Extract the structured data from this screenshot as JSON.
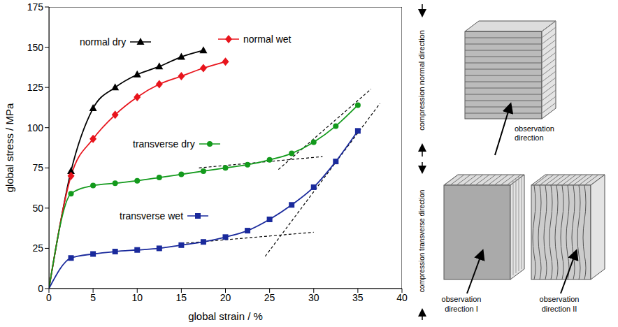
{
  "chart_data": {
    "type": "line",
    "x_label": "global strain / %",
    "y_label": "global stress / MPa",
    "xlim": [
      0,
      40
    ],
    "xticks": [
      0,
      5,
      10,
      15,
      20,
      25,
      30,
      35,
      40
    ],
    "ylim": [
      0,
      175
    ],
    "yticks": [
      0,
      25,
      50,
      75,
      100,
      125,
      150,
      175
    ],
    "series": [
      {
        "name": "normal dry",
        "color": "#000000",
        "marker": "triangle",
        "x": [
          0,
          2.5,
          5,
          7.5,
          10,
          12.5,
          15,
          17.5
        ],
        "values": [
          0,
          73,
          112,
          125,
          133,
          138,
          144,
          148
        ]
      },
      {
        "name": "normal wet",
        "color": "#e8141c",
        "marker": "diamond",
        "x": [
          0,
          2.5,
          5,
          7.5,
          10,
          12.5,
          15,
          17.5,
          20
        ],
        "values": [
          0,
          70,
          93,
          108,
          119,
          127,
          132,
          137,
          141
        ]
      },
      {
        "name": "transverse dry",
        "color": "#139a1c",
        "marker": "circle",
        "x": [
          0,
          2.5,
          5,
          7.5,
          10,
          12.5,
          15,
          17.5,
          20,
          22.5,
          25,
          27.5,
          30,
          32.5,
          35
        ],
        "values": [
          0,
          59,
          64,
          65.5,
          67,
          69,
          71,
          73,
          75,
          77,
          80,
          84,
          91,
          101,
          114
        ]
      },
      {
        "name": "transverse wet",
        "color": "#1a2a9c",
        "marker": "square",
        "x": [
          0,
          2.5,
          5,
          7.5,
          10,
          12.5,
          15,
          17.5,
          20,
          22.5,
          25,
          27.5,
          30,
          32.5,
          35
        ],
        "values": [
          0,
          19,
          21.5,
          23,
          24,
          25,
          27,
          29,
          32,
          36,
          43,
          52,
          63,
          79,
          98
        ]
      }
    ],
    "tangent_lines": [
      {
        "color": "#000000",
        "line_style": "dashed",
        "x": [
          17,
          31
        ],
        "values": [
          75,
          82
        ]
      },
      {
        "color": "#000000",
        "line_style": "dashed",
        "x": [
          26,
          36.5
        ],
        "values": [
          74,
          124
        ]
      },
      {
        "color": "#000000",
        "line_style": "dashed",
        "x": [
          15,
          30
        ],
        "values": [
          28,
          35
        ]
      },
      {
        "color": "#000000",
        "line_style": "dashed",
        "x": [
          24.5,
          37.5
        ],
        "values": [
          20,
          115
        ]
      }
    ]
  },
  "diagrams": {
    "normal": {
      "label": "compression normal direction",
      "observation": "observation direction"
    },
    "transverse": {
      "label": "compression transverse direction",
      "observation": [
        "observation direction I",
        "observation direction II"
      ]
    }
  }
}
